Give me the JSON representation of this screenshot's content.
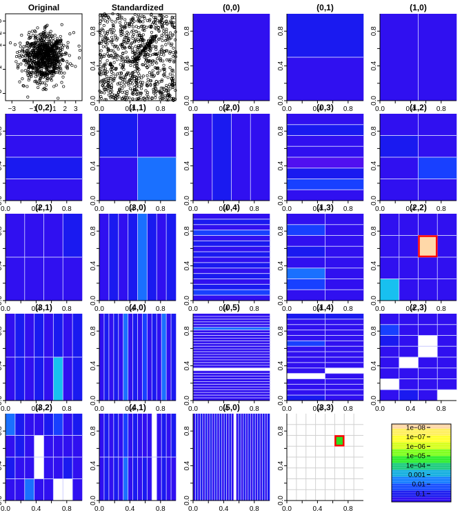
{
  "chart_data": [
    {
      "type": "scatter",
      "title": "Original",
      "xlim": [
        -3.6,
        3.6
      ],
      "ylim": [
        -3.6,
        3.6
      ],
      "xticks": [
        "-3",
        "-1",
        "1",
        "2",
        "3"
      ],
      "yticks": [
        "-3",
        "-1",
        "1",
        "2",
        "3"
      ],
      "points": "original"
    },
    {
      "type": "scatter",
      "title": "Standardized",
      "xlim": [
        0,
        1
      ],
      "ylim": [
        0,
        1
      ],
      "xticks": [
        "0.0",
        "0.4",
        "0.8"
      ],
      "yticks": [
        "0.0",
        "0.4",
        "0.8"
      ],
      "points": "standardized"
    },
    {
      "type": "heatmap",
      "title": "(0,0)",
      "nx": 1,
      "ny": 1,
      "cells": [
        [
          1
        ]
      ]
    },
    {
      "type": "heatmap",
      "title": "(0,1)",
      "nx": 1,
      "ny": 2,
      "cells": [
        [
          3
        ],
        [
          1
        ]
      ]
    },
    {
      "type": "heatmap",
      "title": "(1,0)",
      "nx": 2,
      "ny": 1,
      "cells": [
        [
          1,
          1
        ]
      ]
    },
    {
      "type": "heatmap",
      "title": "(0,2)",
      "nx": 1,
      "ny": 4,
      "cells": [
        [
          1
        ],
        [
          1
        ],
        [
          3
        ],
        [
          1
        ]
      ]
    },
    {
      "type": "heatmap",
      "title": "(1,1)",
      "nx": 2,
      "ny": 2,
      "cells": [
        [
          3,
          1
        ],
        [
          1,
          5
        ]
      ]
    },
    {
      "type": "heatmap",
      "title": "(2,0)",
      "nx": 4,
      "ny": 1,
      "cells": [
        [
          1,
          3,
          1,
          1
        ]
      ]
    },
    {
      "type": "heatmap",
      "title": "(0,3)",
      "nx": 1,
      "ny": 8,
      "cells": [
        [
          1
        ],
        [
          3
        ],
        [
          1
        ],
        [
          1
        ],
        [
          2
        ],
        [
          3
        ],
        [
          4
        ],
        [
          1
        ]
      ]
    },
    {
      "type": "heatmap",
      "title": "(1,2)",
      "nx": 2,
      "ny": 4,
      "cells": [
        [
          1,
          1
        ],
        [
          3,
          1
        ],
        [
          1,
          4
        ],
        [
          1,
          1
        ]
      ]
    },
    {
      "type": "heatmap",
      "title": "(2,1)",
      "nx": 4,
      "ny": 2,
      "cells": [
        [
          1,
          1,
          1,
          3
        ],
        [
          1,
          1,
          1,
          1
        ]
      ]
    },
    {
      "type": "heatmap",
      "title": "(3,0)",
      "nx": 8,
      "ny": 1,
      "cells": [
        [
          1,
          3,
          1,
          3,
          5,
          3,
          1,
          3
        ]
      ]
    },
    {
      "type": "heatmap",
      "title": "(0,4)",
      "nx": 1,
      "ny": 16,
      "cells": [
        [
          1
        ],
        [
          3
        ],
        [
          1
        ],
        [
          4
        ],
        [
          1
        ],
        [
          3
        ],
        [
          1
        ],
        [
          3
        ],
        [
          1
        ],
        [
          3
        ],
        [
          1
        ],
        [
          3
        ],
        [
          1
        ],
        [
          3
        ],
        [
          4
        ],
        [
          1
        ]
      ]
    },
    {
      "type": "heatmap",
      "title": "(1,3)",
      "nx": 2,
      "ny": 8,
      "cells": [
        [
          1,
          1
        ],
        [
          4,
          1
        ],
        [
          1,
          1
        ],
        [
          3,
          1
        ],
        [
          1,
          1
        ],
        [
          5,
          1
        ],
        [
          4,
          1
        ],
        [
          1,
          1
        ]
      ]
    },
    {
      "type": "heatmap",
      "title": "(2,2)",
      "nx": 4,
      "ny": 4,
      "cells": [
        [
          1,
          1,
          1,
          1
        ],
        [
          1,
          1,
          9,
          1
        ],
        [
          1,
          1,
          1,
          1
        ],
        [
          6,
          1,
          1,
          1
        ]
      ]
    },
    {
      "type": "heatmap",
      "title": "(3,1)",
      "nx": 8,
      "ny": 2,
      "cells": [
        [
          1,
          3,
          1,
          3,
          1,
          3,
          1,
          3
        ],
        [
          1,
          3,
          1,
          3,
          1,
          6,
          1,
          3
        ]
      ]
    },
    {
      "type": "heatmap",
      "title": "(4,0)",
      "nx": 16,
      "ny": 1,
      "cells": [
        [
          1,
          3,
          1,
          3,
          1,
          5,
          1,
          3,
          1,
          4,
          1,
          3,
          1,
          5,
          1,
          3
        ]
      ]
    },
    {
      "type": "heatmap",
      "title": "(0,5)",
      "nx": 1,
      "ny": 32,
      "cells": [
        [
          1
        ],
        [
          1
        ],
        [
          1
        ],
        [
          1
        ],
        [
          1
        ],
        [
          5
        ],
        [
          1
        ],
        [
          1
        ],
        [
          1
        ],
        [
          1
        ],
        [
          1
        ],
        [
          1
        ],
        [
          1
        ],
        [
          1
        ],
        [
          1
        ],
        [
          1
        ],
        [
          1
        ],
        [
          1
        ],
        [
          1
        ],
        [
          1
        ],
        [
          0
        ],
        [
          1
        ],
        [
          1
        ],
        [
          1
        ],
        [
          1
        ],
        [
          1
        ],
        [
          1
        ],
        [
          1
        ],
        [
          1
        ],
        [
          1
        ],
        [
          1
        ],
        [
          1
        ]
      ]
    },
    {
      "type": "heatmap",
      "title": "(1,4)",
      "nx": 2,
      "ny": 16,
      "cells": [
        [
          3,
          3
        ],
        [
          1,
          1
        ],
        [
          1,
          1
        ],
        [
          1,
          1
        ],
        [
          1,
          1
        ],
        [
          4,
          1
        ],
        [
          1,
          1
        ],
        [
          1,
          1
        ],
        [
          1,
          1
        ],
        [
          1,
          1
        ],
        [
          1,
          0
        ],
        [
          0,
          1
        ],
        [
          1,
          1
        ],
        [
          1,
          1
        ],
        [
          1,
          1
        ],
        [
          3,
          1
        ]
      ]
    },
    {
      "type": "heatmap",
      "title": "(2,3)",
      "nx": 4,
      "ny": 8,
      "cells": [
        [
          1,
          1,
          1,
          1
        ],
        [
          4,
          1,
          1,
          1
        ],
        [
          3,
          1,
          0,
          1
        ],
        [
          1,
          1,
          0,
          1
        ],
        [
          1,
          0,
          1,
          1
        ],
        [
          1,
          1,
          1,
          1
        ],
        [
          0,
          1,
          1,
          1
        ],
        [
          1,
          3,
          1,
          0
        ]
      ]
    },
    {
      "type": "heatmap",
      "title": "(3,2)",
      "nx": 8,
      "ny": 4,
      "cells": [
        [
          5,
          3,
          1,
          1,
          3,
          4,
          1,
          3
        ],
        [
          1,
          3,
          1,
          0,
          1,
          1,
          1,
          1
        ],
        [
          3,
          1,
          1,
          0,
          1,
          1,
          3,
          1
        ],
        [
          1,
          1,
          5,
          1,
          1,
          0,
          0,
          1
        ]
      ]
    },
    {
      "type": "heatmap",
      "title": "(4,1)",
      "nx": 16,
      "ny": 2,
      "cells": [
        [
          1,
          3,
          1,
          3,
          1,
          4,
          1,
          3,
          1,
          1,
          1,
          0,
          1,
          3,
          1,
          3
        ],
        [
          1,
          3,
          1,
          3,
          1,
          5,
          1,
          3,
          1,
          3,
          1,
          0,
          1,
          3,
          1,
          1
        ]
      ]
    },
    {
      "type": "heatmap",
      "title": "(5,0)",
      "nx": 32,
      "ny": 1,
      "cells": [
        [
          1,
          3,
          1,
          3,
          1,
          3,
          1,
          3,
          1,
          3,
          1,
          3,
          1,
          3,
          1,
          3,
          1,
          0,
          1,
          3,
          1,
          3,
          1,
          3,
          1,
          3,
          1,
          3,
          1,
          3,
          1,
          3
        ]
      ]
    },
    {
      "type": "heatmap",
      "title": "(3,3)",
      "nx": 8,
      "ny": 8,
      "cells": "empty",
      "highlight": {
        "col": 5,
        "row": 2,
        "level": 8
      }
    }
  ],
  "legend": {
    "type": "colorbar",
    "labels": [
      "1e-08",
      "1e-07",
      "1e-06",
      "1e-05",
      "1e-04",
      "0.001",
      "0.01",
      "0.1"
    ]
  },
  "palette": [
    "#ffffff",
    "#3010f0",
    "#5010f0",
    "#1a1af0",
    "#1840ff",
    "#1a70ff",
    "#18c0f0",
    "#40ff20",
    "#30dd20",
    "#ffd8a8"
  ]
}
